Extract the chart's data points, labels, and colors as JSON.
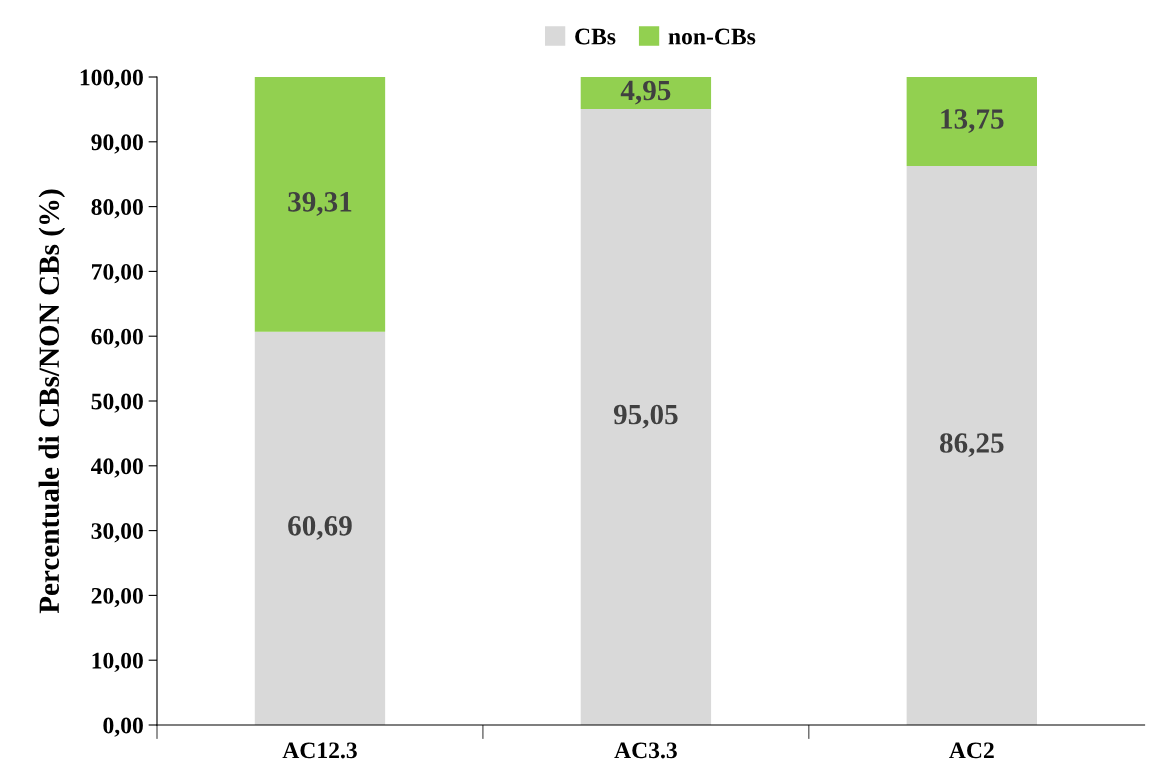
{
  "chart_data": {
    "type": "bar",
    "stacked": true,
    "ylabel": "Percentuale di CBs/NON CBs (%)",
    "categories": [
      "AC12.3",
      "AC3.3",
      "AC2"
    ],
    "series": [
      {
        "name": "CBs",
        "color": "#d9d9d9",
        "values": [
          60.69,
          95.05,
          86.25
        ],
        "value_labels": [
          "60,69",
          "95,05",
          "86,25"
        ]
      },
      {
        "name": "non-CBs",
        "color": "#92d050",
        "values": [
          39.31,
          4.95,
          13.75
        ],
        "value_labels": [
          "39,31",
          "4,95",
          "13,75"
        ]
      }
    ],
    "ylim": [
      0,
      100
    ],
    "yticks": [
      {
        "value": 0,
        "label": "0,00"
      },
      {
        "value": 10,
        "label": "10,00"
      },
      {
        "value": 20,
        "label": "20,00"
      },
      {
        "value": 30,
        "label": "30,00"
      },
      {
        "value": 40,
        "label": "40,00"
      },
      {
        "value": 50,
        "label": "50,00"
      },
      {
        "value": 60,
        "label": "60,00"
      },
      {
        "value": 70,
        "label": "70,00"
      },
      {
        "value": 80,
        "label": "80,00"
      },
      {
        "value": 90,
        "label": "90,00"
      },
      {
        "value": 100,
        "label": "100,00"
      }
    ],
    "grid": false,
    "legend": "top"
  }
}
